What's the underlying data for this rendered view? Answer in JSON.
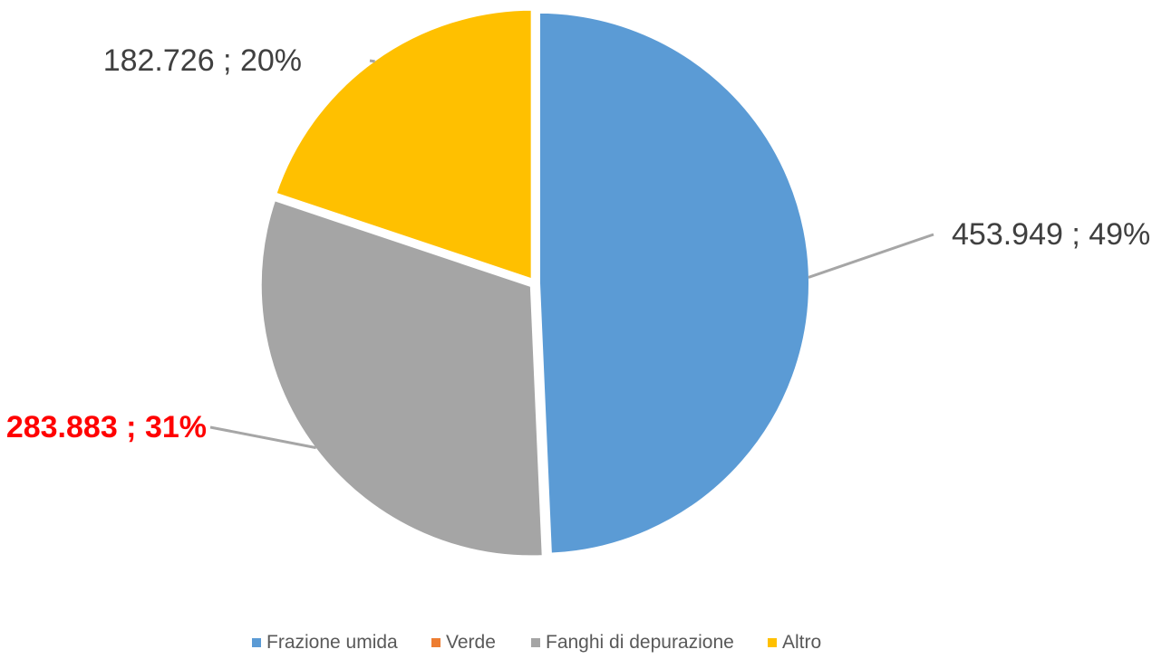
{
  "chart_data": {
    "type": "pie",
    "title": "",
    "categories": [
      "Frazione umida",
      "Verde",
      "Fanghi di depurazione",
      "Altro"
    ],
    "values": [
      453949,
      0,
      283883,
      182726
    ],
    "labels": [
      "453.949 ; 49%",
      "",
      "283.883 ; 31%",
      "182.726 ; 20%"
    ],
    "colors": [
      "#5b9bd5",
      "#ed7d31",
      "#a5a5a5",
      "#ffc000"
    ],
    "label_colors": [
      "#404040",
      "#404040",
      "#ff0000",
      "#404040"
    ],
    "legend_position": "bottom",
    "start_angle_deg": 0,
    "direction": "clockwise",
    "exploded": true
  }
}
